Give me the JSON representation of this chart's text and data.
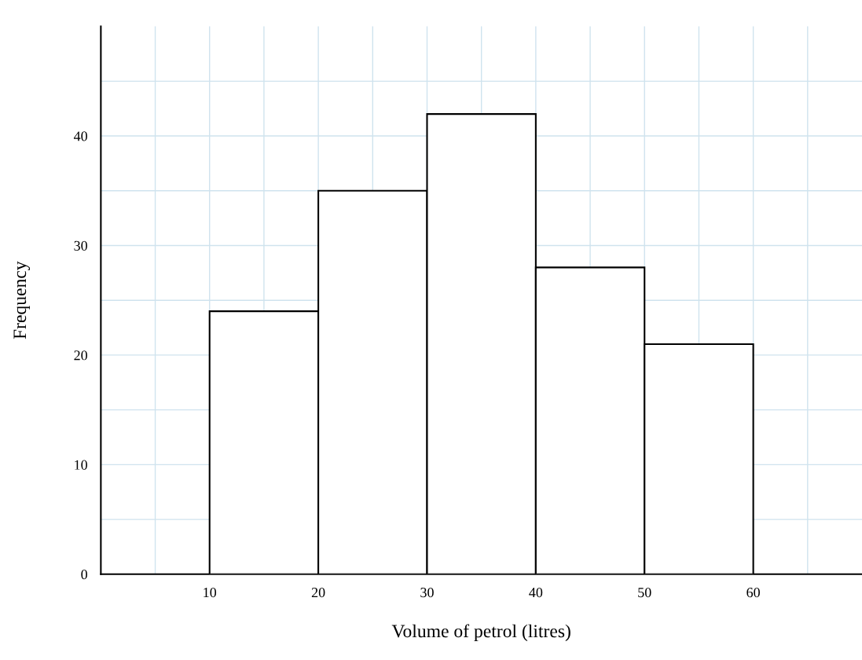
{
  "chart_data": {
    "type": "histogram",
    "xlabel": "Volume of petrol (litres)",
    "ylabel": "Frequency",
    "bins": [
      10,
      20,
      30,
      40,
      50,
      60
    ],
    "values": [
      24,
      35,
      42,
      28,
      21
    ],
    "color": "#ffffff",
    "xlim": [
      0,
      70
    ],
    "ylim": [
      0,
      50
    ],
    "xticks": [
      {
        "value": 5,
        "label": null
      },
      10,
      {
        "value": 15,
        "label": null
      },
      20,
      {
        "value": 25,
        "label": null
      },
      30,
      {
        "value": 35,
        "label": null
      },
      40,
      {
        "value": 45,
        "label": null
      },
      50,
      {
        "value": 55,
        "label": null
      },
      60,
      {
        "value": 65,
        "label": null
      }
    ],
    "yticks": [
      0,
      {
        "value": 5,
        "label": null
      },
      10,
      {
        "value": 15,
        "label": null
      },
      20,
      {
        "value": 25,
        "label": null
      },
      30,
      {
        "value": 35,
        "label": null
      },
      40,
      {
        "value": 45,
        "label": null
      }
    ],
    "grid": true
  }
}
